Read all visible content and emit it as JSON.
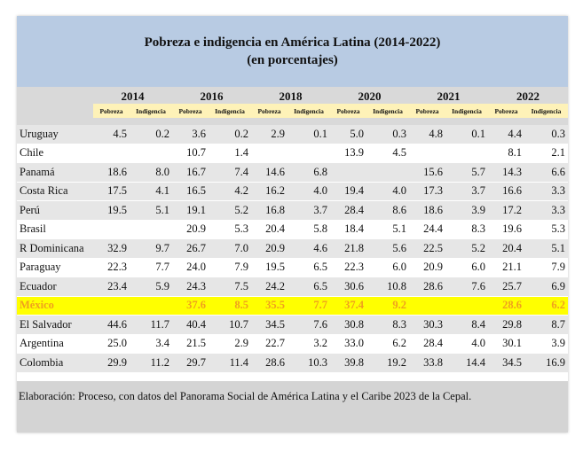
{
  "title": "Pobreza e indigencia en América Latina (2014-2022)",
  "subtitle": "(en porcentajes)",
  "years": [
    "2014",
    "2016",
    "2018",
    "2020",
    "2021",
    "2022"
  ],
  "sub_headers": {
    "pobreza": "Pobreza",
    "indigencia": "Indigencia"
  },
  "rows": [
    {
      "country": "Uruguay",
      "values": [
        "4.5",
        "0.2",
        "3.6",
        "0.2",
        "2.9",
        "0.1",
        "5.0",
        "0.3",
        "4.8",
        "0.1",
        "4.4",
        "0.3"
      ]
    },
    {
      "country": "Chile",
      "values": [
        "",
        "",
        "10.7",
        "1.4",
        "",
        "",
        "13.9",
        "4.5",
        "",
        "",
        "8.1",
        "2.1"
      ]
    },
    {
      "country": "Panamá",
      "values": [
        "18.6",
        "8.0",
        "16.7",
        "7.4",
        "14.6",
        "6.8",
        "",
        "",
        "15.6",
        "5.7",
        "14.3",
        "6.6"
      ]
    },
    {
      "country": "Costa Rica",
      "values": [
        "17.5",
        "4.1",
        "16.5",
        "4.2",
        "16.2",
        "4.0",
        "19.4",
        "4.0",
        "17.3",
        "3.7",
        "16.6",
        "3.3"
      ]
    },
    {
      "country": "Perú",
      "values": [
        "19.5",
        "5.1",
        "19.1",
        "5.2",
        "16.8",
        "3.7",
        "28.4",
        "8.6",
        "18.6",
        "3.9",
        "17.2",
        "3.3"
      ]
    },
    {
      "country": "Brasil",
      "values": [
        "",
        "",
        "20.9",
        "5.3",
        "20.4",
        "5.8",
        "18.4",
        "5.1",
        "24.4",
        "8.3",
        "19.6",
        "5.3"
      ]
    },
    {
      "country": "R Dominicana",
      "values": [
        "32.9",
        "9.7",
        "26.7",
        "7.0",
        "20.9",
        "4.6",
        "21.8",
        "5.6",
        "22.5",
        "5.2",
        "20.4",
        "5.1"
      ]
    },
    {
      "country": "Paraguay",
      "values": [
        "22.3",
        "7.7",
        "24.0",
        "7.9",
        "19.5",
        "6.5",
        "22.3",
        "6.0",
        "20.9",
        "6.0",
        "21.1",
        "7.9"
      ]
    },
    {
      "country": "Ecuador",
      "values": [
        "23.4",
        "5.9",
        "24.3",
        "7.5",
        "24.2",
        "6.5",
        "30.6",
        "10.8",
        "28.6",
        "7.6",
        "25.7",
        "6.9"
      ]
    },
    {
      "country": "México",
      "values": [
        "",
        "",
        "37.6",
        "8.5",
        "35.5",
        "7.7",
        "37.4",
        "9.2",
        "",
        "",
        "28.6",
        "6.2"
      ]
    },
    {
      "country": "El Salvador",
      "values": [
        "44.6",
        "11.7",
        "40.4",
        "10.7",
        "34.5",
        "7.6",
        "30.8",
        "8.3",
        "30.3",
        "8.4",
        "29.8",
        "8.7"
      ]
    },
    {
      "country": "Argentina",
      "values": [
        "25.0",
        "3.4",
        "21.5",
        "2.9",
        "22.7",
        "3.2",
        "33.0",
        "6.2",
        "28.4",
        "4.0",
        "30.1",
        "3.9"
      ]
    },
    {
      "country": "Colombia",
      "values": [
        "29.9",
        "11.2",
        "29.7",
        "11.4",
        "28.6",
        "10.3",
        "39.8",
        "19.2",
        "33.8",
        "14.4",
        "34.5",
        "16.9"
      ]
    }
  ],
  "highlight_country": "México",
  "footer": "Elaboración: Proceso, con datos del Panorama Social de América Latina y el Caribe 2023 de la Cepal.",
  "colors": {
    "title_bg": "#b8cbe3",
    "subheader_bg": "#fef2b8",
    "row_gray": "#e6e6e6",
    "highlight_bg": "#ffff00",
    "highlight_text": "#f0a01e",
    "footer_bg": "#d4d4d4"
  }
}
